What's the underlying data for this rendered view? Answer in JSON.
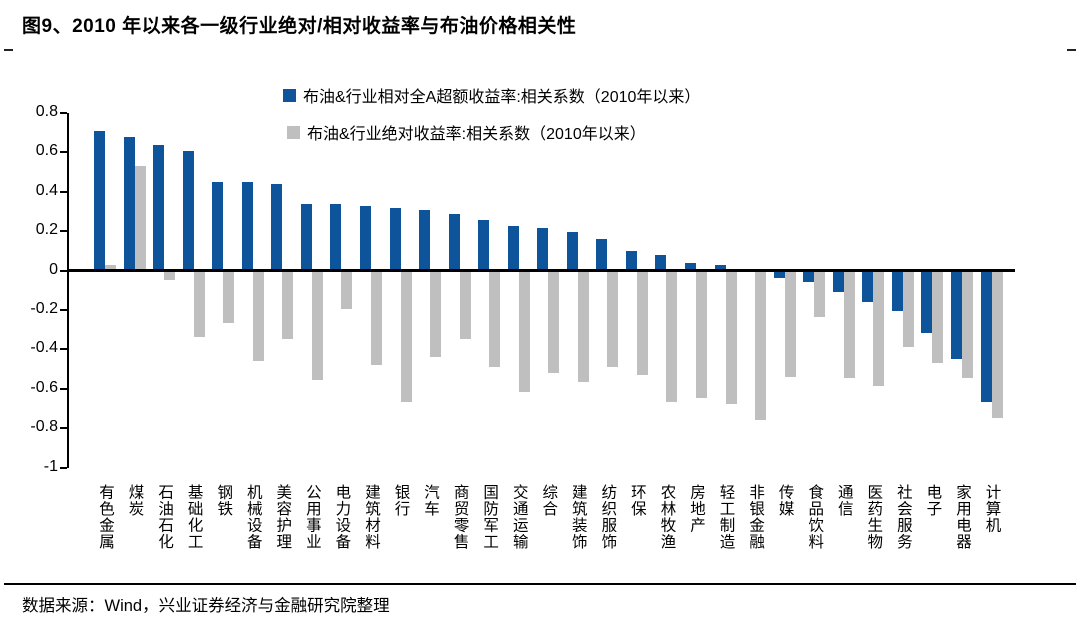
{
  "title": "图9、2010 年以来各一级行业绝对/相对收益率与布油价格相关性",
  "legend": [
    {
      "label": "布油&行业相对全A超额收益率:相关系数（2010年以来）",
      "color": "#0E549B"
    },
    {
      "label": "布油&行业绝对收益率:相关系数（2010年以来）",
      "color": "#BFBFBF"
    }
  ],
  "footer": {
    "source_label": "数据来源：Wind，兴业证券经济与金融研究院整理"
  },
  "chart_data": {
    "type": "bar",
    "title": "图9、2010 年以来各一级行业绝对/相对收益率与布油价格相关性",
    "categories": [
      "有色金属",
      "煤炭",
      "石油石化",
      "基础化工",
      "钢铁",
      "机械设备",
      "美容护理",
      "公用事业",
      "电力设备",
      "建筑材料",
      "银行",
      "汽车",
      "商贸零售",
      "国防军工",
      "交通运输",
      "综合",
      "建筑装饰",
      "纺织服饰",
      "环保",
      "农林牧渔",
      "房地产",
      "轻工制造",
      "非银金融",
      "传媒",
      "食品饮料",
      "通信",
      "医药生物",
      "社会服务",
      "电子",
      "家用电器",
      "计算机"
    ],
    "series": [
      {
        "name": "布油&行业相对全A超额收益率:相关系数（2010年以来）",
        "color": "#0E549B",
        "values": [
          0.7,
          0.67,
          0.63,
          0.6,
          0.44,
          0.44,
          0.43,
          0.33,
          0.33,
          0.32,
          0.31,
          0.3,
          0.28,
          0.25,
          0.22,
          0.21,
          0.19,
          0.15,
          0.09,
          0.07,
          0.03,
          0.02,
          0.0,
          -0.03,
          -0.05,
          -0.1,
          -0.15,
          -0.2,
          -0.31,
          -0.44,
          -0.66
        ]
      },
      {
        "name": "布油&行业绝对收益率:相关系数（2010年以来）",
        "color": "#BFBFBF",
        "values": [
          0.02,
          0.52,
          -0.04,
          -0.33,
          -0.26,
          -0.45,
          -0.34,
          -0.55,
          -0.19,
          -0.47,
          -0.66,
          -0.43,
          -0.34,
          -0.48,
          -0.61,
          -0.51,
          -0.56,
          -0.48,
          -0.52,
          -0.66,
          -0.64,
          -0.67,
          -0.75,
          -0.53,
          -0.23,
          -0.54,
          -0.58,
          -0.38,
          -0.46,
          -0.54,
          -0.74
        ]
      }
    ],
    "xlabel": "",
    "ylabel": "",
    "ylim": [
      -1,
      0.8
    ],
    "yticks": [
      0.8,
      0.6,
      0.4,
      0.2,
      0,
      -0.2,
      -0.4,
      -0.6,
      -0.8,
      -1
    ],
    "grid": false,
    "legend_position": "top-center-inside"
  }
}
